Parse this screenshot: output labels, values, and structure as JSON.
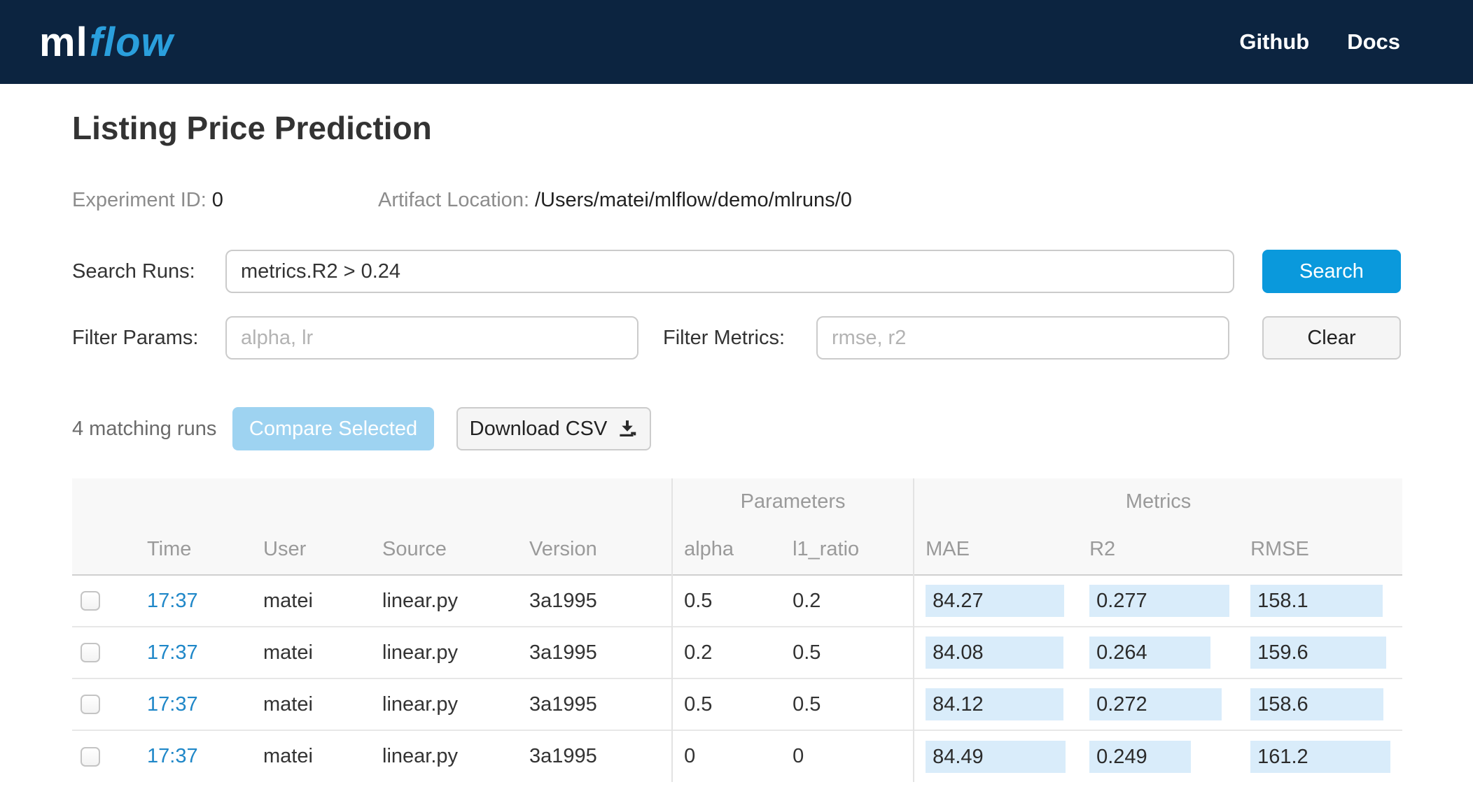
{
  "navbar": {
    "logo_ml": "ml",
    "logo_flow": "flow",
    "links": [
      {
        "label": "Github"
      },
      {
        "label": "Docs"
      }
    ]
  },
  "page": {
    "title": "Listing Price Prediction"
  },
  "experiment": {
    "id_label": "Experiment ID:",
    "id_value": "0",
    "artifact_label": "Artifact Location:",
    "artifact_value": "/Users/matei/mlflow/demo/mlruns/0"
  },
  "search": {
    "label": "Search Runs:",
    "value": "metrics.R2 > 0.24",
    "button": "Search"
  },
  "filters": {
    "params_label": "Filter Params:",
    "params_placeholder": "alpha, lr",
    "metrics_label": "Filter Metrics:",
    "metrics_placeholder": "rmse, r2",
    "clear_button": "Clear"
  },
  "actions": {
    "matching_runs": "4 matching runs",
    "compare_button": "Compare Selected",
    "download_button": "Download CSV"
  },
  "table": {
    "group_headers": {
      "parameters": "Parameters",
      "metrics": "Metrics"
    },
    "columns": [
      "Time",
      "User",
      "Source",
      "Version",
      "alpha",
      "l1_ratio",
      "MAE",
      "R2",
      "RMSE"
    ],
    "rows": [
      {
        "time": "17:37",
        "user": "matei",
        "source": "linear.py",
        "version": "3a1995",
        "alpha": "0.5",
        "l1_ratio": "0.2",
        "mae": 84.27,
        "r2": 0.277,
        "rmse": 158.1
      },
      {
        "time": "17:37",
        "user": "matei",
        "source": "linear.py",
        "version": "3a1995",
        "alpha": "0.2",
        "l1_ratio": "0.5",
        "mae": 84.08,
        "r2": 0.264,
        "rmse": 159.6
      },
      {
        "time": "17:37",
        "user": "matei",
        "source": "linear.py",
        "version": "3a1995",
        "alpha": "0.5",
        "l1_ratio": "0.5",
        "mae": 84.12,
        "r2": 0.272,
        "rmse": 158.6
      },
      {
        "time": "17:37",
        "user": "matei",
        "source": "linear.py",
        "version": "3a1995",
        "alpha": "0",
        "l1_ratio": "0",
        "mae": 84.49,
        "r2": 0.249,
        "rmse": 161.2
      }
    ]
  },
  "colors": {
    "navbar_bg": "#0c2440",
    "logo_blue": "#2a9fdd",
    "primary_button": "#0a99dc",
    "disabled_button": "#9ed3f1",
    "link_blue": "#1f87c8",
    "metric_highlight": "#d9ecfa"
  }
}
